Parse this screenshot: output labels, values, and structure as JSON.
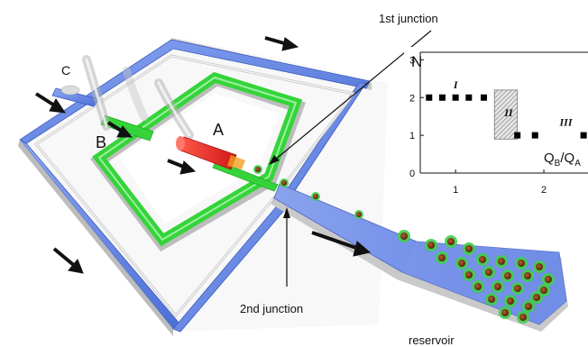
{
  "labels": {
    "first_junction": "1st junction",
    "second_junction": "2nd junction",
    "reservoir": "reservoir",
    "inlet_a": "A",
    "inlet_b": "B",
    "inlet_c": "C"
  },
  "colors": {
    "outer_channel": "#5b7fe0",
    "middle_channel": "#35d43a",
    "inner_channel": "#e02424",
    "droplet_shell": "#3fcf4a",
    "droplet_core": "#8a3a10",
    "output_channel": "#6f8de8"
  },
  "chart_data": {
    "type": "scatter",
    "ylabel": "N",
    "xlabel_num": "Q",
    "xlabel_num_sub": "B",
    "xlabel_sep": "/",
    "xlabel_den": "Q",
    "xlabel_den_sub": "A",
    "xlim": [
      0.6,
      2.5
    ],
    "ylim": [
      0,
      3.2
    ],
    "xticks": [
      "1",
      "2"
    ],
    "yticks": [
      "0",
      "1",
      "2",
      "3"
    ],
    "regions": [
      {
        "name": "I",
        "x": 1.0,
        "y": 2.25
      },
      {
        "name": "II",
        "x": 1.6,
        "y": 1.5
      },
      {
        "name": "III",
        "x": 2.25,
        "y": 1.25
      }
    ],
    "shaded_band": {
      "x0": 1.44,
      "x1": 1.7,
      "y0": 0.9,
      "y1": 2.2
    },
    "points": [
      {
        "x": 0.7,
        "y": 2
      },
      {
        "x": 0.85,
        "y": 2
      },
      {
        "x": 1.0,
        "y": 2
      },
      {
        "x": 1.15,
        "y": 2
      },
      {
        "x": 1.32,
        "y": 2
      },
      {
        "x": 1.7,
        "y": 1
      },
      {
        "x": 1.9,
        "y": 1
      },
      {
        "x": 2.45,
        "y": 1
      }
    ]
  }
}
